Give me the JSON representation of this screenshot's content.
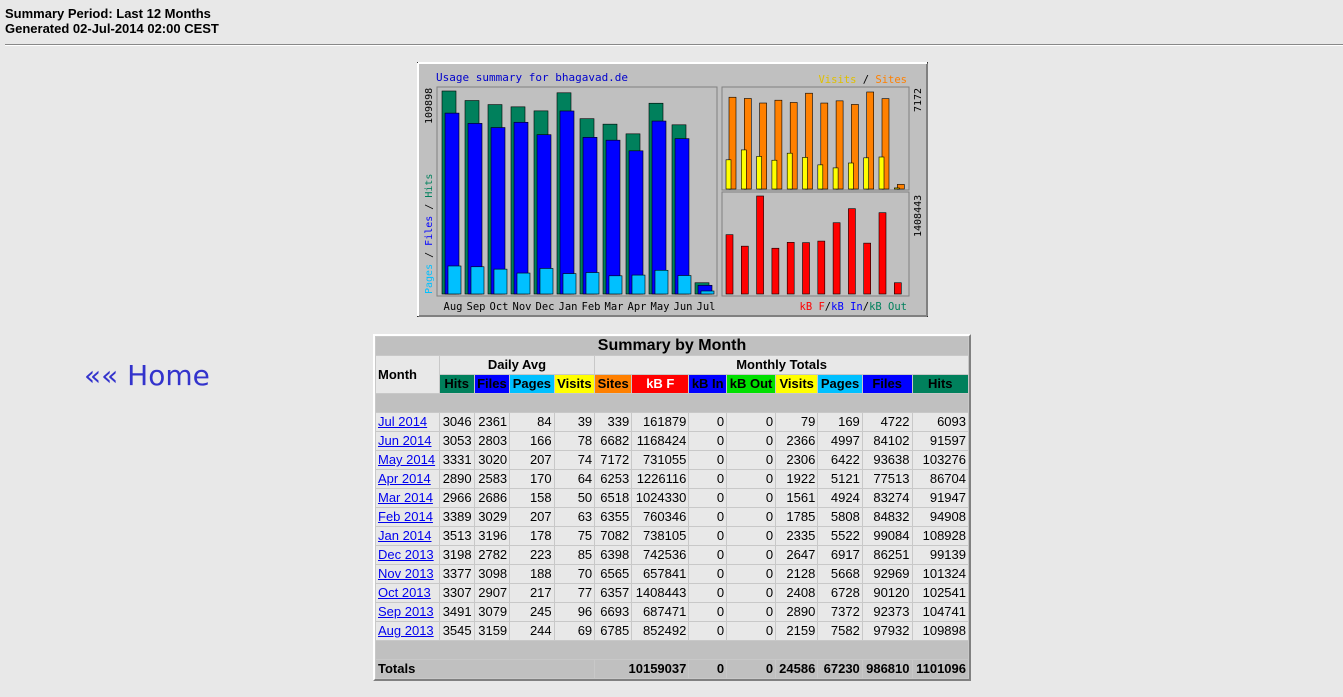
{
  "header": {
    "period": "Summary Period: Last 12 Months",
    "generated": "Generated 02-Jul-2014 02:00 CEST"
  },
  "nav": {
    "home": "«« Home"
  },
  "graph": {
    "title": "Usage summary for bhagavad.de",
    "left_axis_labels": [
      "Pages",
      "Files",
      "Hits"
    ],
    "left_max": "109898",
    "right_top_max": "7172",
    "right_bottom_max": "1408443",
    "visits_label": "Visits",
    "sites_label": "Sites",
    "kbf_label": "kB F",
    "kbin_label": "kB In",
    "kbout_label": "kB Out",
    "colors": {
      "hits": "#00805c",
      "files": "#0000ff",
      "pages": "#00c0ff",
      "visits": "#ffff00",
      "sites": "#ff8000",
      "kbf": "#ff0000",
      "kbin": "#0000ff",
      "kbout": "#00805c"
    }
  },
  "chart_data": {
    "type": "bar",
    "title": "Usage summary for bhagavad.de",
    "categories": [
      "Aug",
      "Sep",
      "Oct",
      "Nov",
      "Dec",
      "Jan",
      "Feb",
      "Mar",
      "Apr",
      "May",
      "Jun",
      "Jul"
    ],
    "series": [
      {
        "name": "Hits",
        "values": [
          109898,
          104741,
          102541,
          101324,
          99139,
          108928,
          94908,
          91947,
          86704,
          103276,
          91597,
          6093
        ]
      },
      {
        "name": "Files",
        "values": [
          97932,
          92373,
          90120,
          92969,
          86251,
          99084,
          84832,
          83274,
          77513,
          93638,
          84102,
          4722
        ]
      },
      {
        "name": "Pages",
        "values": [
          7582,
          7372,
          6728,
          5668,
          6917,
          5522,
          5808,
          4924,
          5121,
          6422,
          4997,
          169
        ]
      },
      {
        "name": "Visits",
        "values": [
          2159,
          2890,
          2408,
          2128,
          2647,
          2335,
          1785,
          1561,
          1922,
          2306,
          2366,
          79
        ]
      },
      {
        "name": "Sites",
        "values": [
          6785,
          6693,
          6357,
          6565,
          6398,
          7082,
          6355,
          6518,
          6253,
          7172,
          6682,
          339
        ]
      },
      {
        "name": "kB F",
        "values": [
          852492,
          687471,
          1408443,
          657841,
          742536,
          738105,
          760346,
          1024330,
          1226116,
          731055,
          1168424,
          161879
        ]
      },
      {
        "name": "kB In",
        "values": [
          0,
          0,
          0,
          0,
          0,
          0,
          0,
          0,
          0,
          0,
          0,
          0
        ]
      },
      {
        "name": "kB Out",
        "values": [
          0,
          0,
          0,
          0,
          0,
          0,
          0,
          0,
          0,
          0,
          0,
          0
        ]
      }
    ]
  },
  "table": {
    "title": "Summary by Month",
    "group_daily": "Daily Avg",
    "group_monthly": "Monthly Totals",
    "month_header": "Month",
    "daily_cols": [
      "Hits",
      "Files",
      "Pages",
      "Visits"
    ],
    "monthly_cols": [
      "Sites",
      "kB F",
      "kB In",
      "kB Out",
      "Visits",
      "Pages",
      "Files",
      "Hits"
    ],
    "rows": [
      {
        "month": "Jul 2014",
        "vals": [
          "3046",
          "2361",
          "84",
          "39",
          "339",
          "161879",
          "0",
          "0",
          "79",
          "169",
          "4722",
          "6093"
        ]
      },
      {
        "month": "Jun 2014",
        "vals": [
          "3053",
          "2803",
          "166",
          "78",
          "6682",
          "1168424",
          "0",
          "0",
          "2366",
          "4997",
          "84102",
          "91597"
        ]
      },
      {
        "month": "May 2014",
        "vals": [
          "3331",
          "3020",
          "207",
          "74",
          "7172",
          "731055",
          "0",
          "0",
          "2306",
          "6422",
          "93638",
          "103276"
        ]
      },
      {
        "month": "Apr 2014",
        "vals": [
          "2890",
          "2583",
          "170",
          "64",
          "6253",
          "1226116",
          "0",
          "0",
          "1922",
          "5121",
          "77513",
          "86704"
        ]
      },
      {
        "month": "Mar 2014",
        "vals": [
          "2966",
          "2686",
          "158",
          "50",
          "6518",
          "1024330",
          "0",
          "0",
          "1561",
          "4924",
          "83274",
          "91947"
        ]
      },
      {
        "month": "Feb 2014",
        "vals": [
          "3389",
          "3029",
          "207",
          "63",
          "6355",
          "760346",
          "0",
          "0",
          "1785",
          "5808",
          "84832",
          "94908"
        ]
      },
      {
        "month": "Jan 2014",
        "vals": [
          "3513",
          "3196",
          "178",
          "75",
          "7082",
          "738105",
          "0",
          "0",
          "2335",
          "5522",
          "99084",
          "108928"
        ]
      },
      {
        "month": "Dec 2013",
        "vals": [
          "3198",
          "2782",
          "223",
          "85",
          "6398",
          "742536",
          "0",
          "0",
          "2647",
          "6917",
          "86251",
          "99139"
        ]
      },
      {
        "month": "Nov 2013",
        "vals": [
          "3377",
          "3098",
          "188",
          "70",
          "6565",
          "657841",
          "0",
          "0",
          "2128",
          "5668",
          "92969",
          "101324"
        ]
      },
      {
        "month": "Oct 2013",
        "vals": [
          "3307",
          "2907",
          "217",
          "77",
          "6357",
          "1408443",
          "0",
          "0",
          "2408",
          "6728",
          "90120",
          "102541"
        ]
      },
      {
        "month": "Sep 2013",
        "vals": [
          "3491",
          "3079",
          "245",
          "96",
          "6693",
          "687471",
          "0",
          "0",
          "2890",
          "7372",
          "92373",
          "104741"
        ]
      },
      {
        "month": "Aug 2013",
        "vals": [
          "3545",
          "3159",
          "244",
          "69",
          "6785",
          "852492",
          "0",
          "0",
          "2159",
          "7582",
          "97932",
          "109898"
        ]
      }
    ],
    "totals": {
      "label": "Totals",
      "kbf": "10159037",
      "kbin": "0",
      "kbout": "0",
      "visits": "24586",
      "pages": "67230",
      "files": "986810",
      "hits": "1101096"
    }
  }
}
